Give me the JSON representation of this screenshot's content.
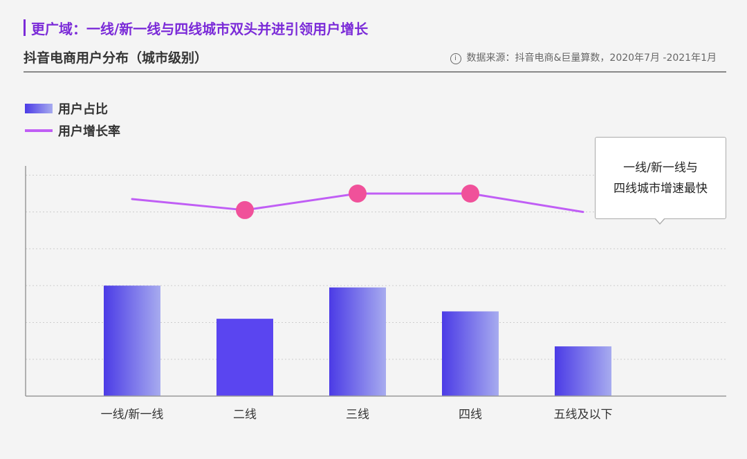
{
  "header": {
    "title": "更广域：一线/新一线与四线城市双头并进引领用户增长"
  },
  "chart_title": "抖音电商用户分布（城市级别）",
  "source": {
    "icon": "info-circle-icon",
    "icon_glyph": "i",
    "text": "数据来源：抖音电商&巨量算数，2020年7月 -2021年1月"
  },
  "legend": {
    "bar_label": "用户占比",
    "line_label": "用户增长率"
  },
  "callout": {
    "line1": "一线/新一线与",
    "line2": "四线城市增速最快"
  },
  "chart_data": {
    "type": "bar",
    "categories": [
      "一线/新一线",
      "二线",
      "三线",
      "四线",
      "五线及以下"
    ],
    "series": [
      {
        "name": "用户占比",
        "type": "bar",
        "values": [
          6.0,
          4.2,
          5.9,
          4.6,
          2.7
        ]
      },
      {
        "name": "用户增长率",
        "type": "line",
        "values": [
          10.7,
          10.1,
          11.0,
          11.0,
          10.0
        ]
      }
    ],
    "markers": [
      1,
      2,
      3
    ],
    "ylim": [
      0,
      12.5
    ],
    "grid": true,
    "legend_position": "top-left",
    "colors": {
      "bar_start": "#4b3be6",
      "bar_end": "#a7abef",
      "bar_solid": "#5a45f0",
      "line": "#c05ef5",
      "marker": "#f0519a",
      "grid": "#cccccc",
      "axis": "#999999"
    }
  }
}
